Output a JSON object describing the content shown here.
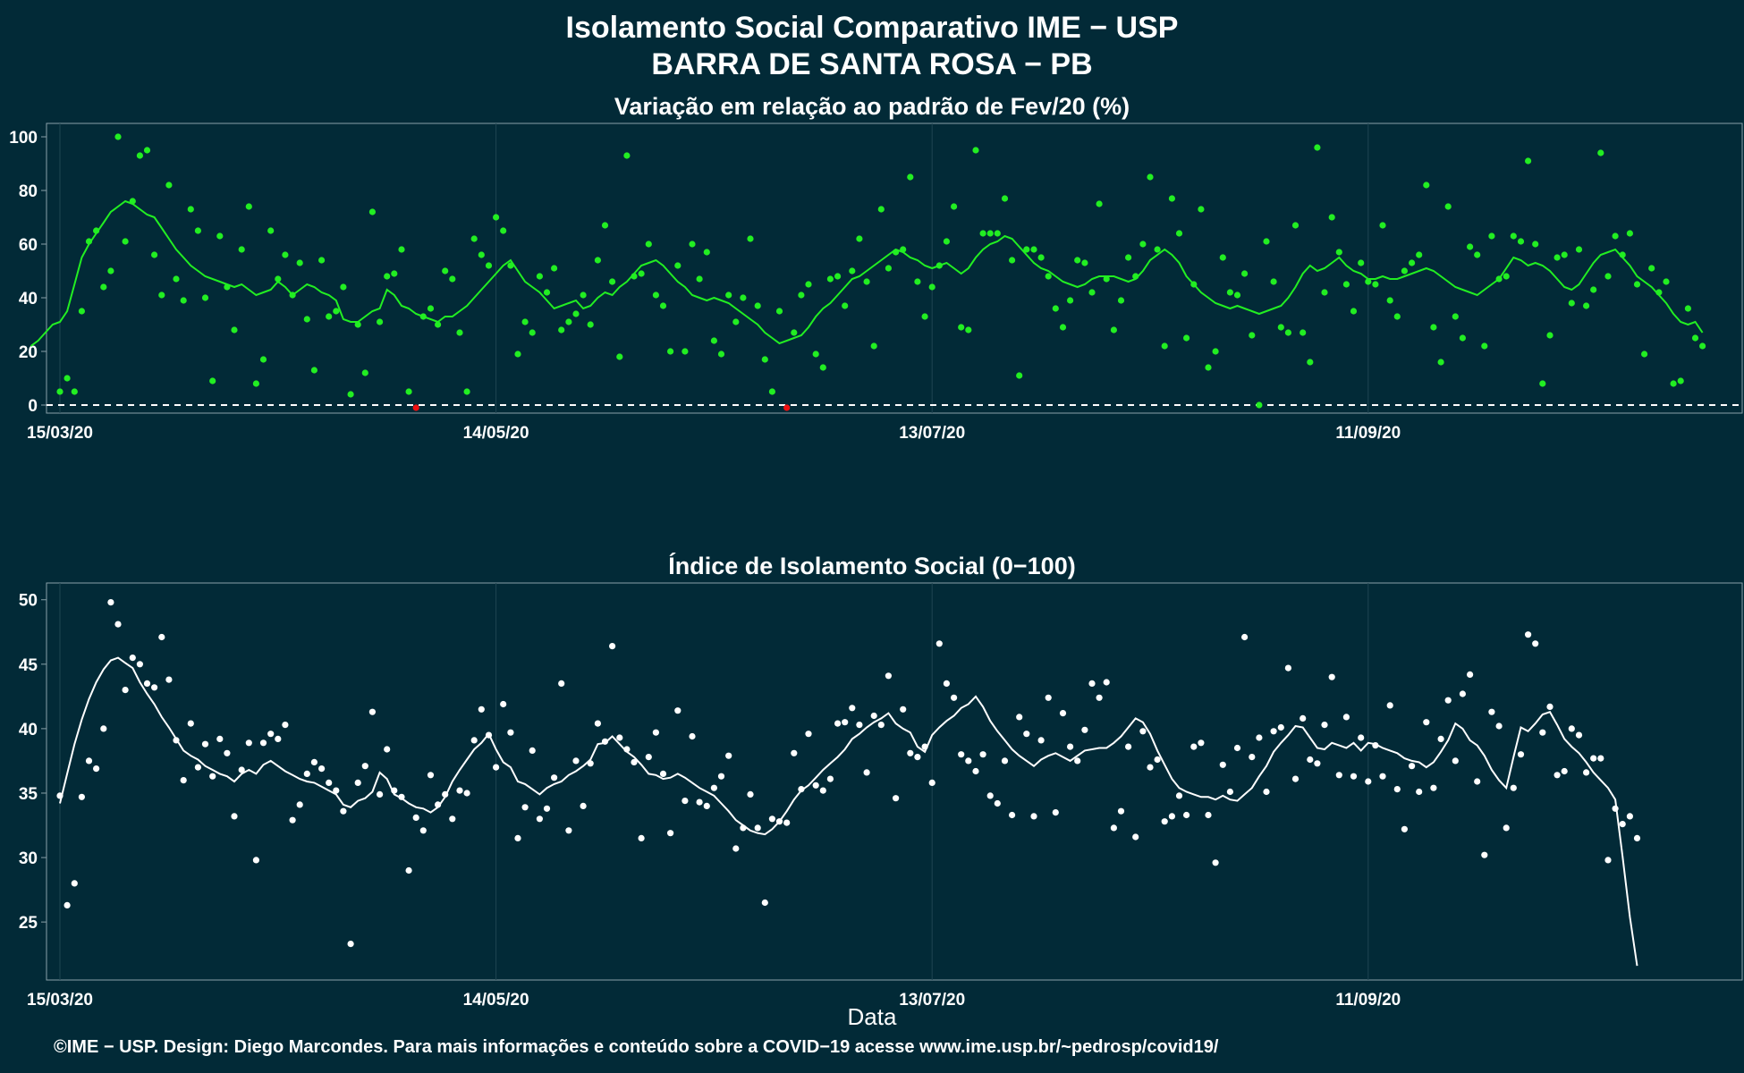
{
  "title": "Isolamento Social Comparativo IME − USP",
  "subtitle": "BARRA DE SANTA ROSA − PB",
  "footer": "©IME − USP. Design: Diego Marcondes. Para mais informações e conteúdo sobre a COVID−19 acesse www.ime.usp.br/~pedrosp/covid19/",
  "colors": {
    "background": "#022a37",
    "panel_border": "#8aa0a8",
    "grid": "#1f4552",
    "variation_points": "#22ee22",
    "variation_line": "#22ee22",
    "negative_points": "#ee1111",
    "index_points": "#ffffff",
    "index_line": "#ffffff",
    "text": "#ffffff"
  },
  "chart_data": [
    {
      "type": "scatter",
      "title": "Variação em relação ao padrão de Fev/20 (%)",
      "xlabel": "",
      "ylabel": "",
      "x_start": "15/03/20",
      "x_end": "30/10/20",
      "x_ticks": [
        "15/03/20",
        "14/05/20",
        "13/07/20",
        "11/09/20"
      ],
      "y_ticks": [
        0,
        20,
        40,
        60,
        80,
        100
      ],
      "ylim": [
        -3,
        105
      ],
      "reference_line": 0,
      "series": [
        {
          "values": [
            5,
            10,
            5,
            35,
            61,
            65,
            44,
            50,
            100,
            61,
            76,
            93,
            95,
            56,
            41,
            82,
            47,
            39,
            73,
            65,
            40,
            9,
            63,
            44,
            28,
            58,
            74,
            8,
            17,
            65,
            47,
            56,
            41,
            53,
            32,
            13,
            54,
            33,
            35,
            44,
            4,
            30,
            12,
            72,
            31,
            48,
            49,
            58,
            5,
            -1,
            33,
            36,
            30,
            50,
            47,
            27,
            5,
            62,
            56,
            52,
            70,
            65,
            52,
            19,
            31,
            27,
            48,
            42,
            51,
            28,
            31,
            34,
            41,
            30,
            54,
            67,
            46,
            18,
            93,
            48,
            49,
            60,
            41,
            37,
            20,
            52,
            20,
            60,
            47,
            57,
            24,
            19,
            41,
            31,
            40,
            62,
            37,
            17,
            5,
            35,
            -1,
            27,
            41,
            45,
            19,
            14,
            47,
            48,
            37,
            50,
            62,
            46,
            22,
            73,
            51,
            57,
            58,
            85,
            46,
            33,
            44,
            52,
            61,
            74,
            29,
            28,
            95,
            64,
            64,
            64,
            77,
            54,
            11,
            58,
            58,
            55,
            48,
            36,
            29,
            39,
            54,
            53,
            42,
            75,
            47,
            28,
            39,
            55,
            48,
            60,
            85,
            58,
            22,
            77,
            64,
            25,
            45,
            73,
            14,
            20,
            55,
            42,
            41,
            49,
            26,
            0,
            61,
            46,
            29,
            27,
            67,
            27,
            16,
            96,
            42,
            70,
            57,
            45,
            35,
            53,
            46,
            45,
            67,
            39,
            33,
            50,
            53,
            56,
            82,
            29,
            16,
            74,
            33,
            25,
            59,
            56,
            22,
            63,
            47,
            48,
            63,
            61,
            91,
            60,
            8,
            26,
            55,
            56,
            38,
            58,
            37,
            43,
            94,
            48,
            63,
            56,
            64,
            45,
            19,
            51,
            42,
            46,
            8,
            9,
            36,
            25,
            22
          ]
        },
        {
          "values": [
            22,
            24,
            27,
            30,
            31,
            35,
            45,
            55,
            60,
            64,
            68,
            72,
            74,
            76,
            75,
            73,
            71,
            70,
            66,
            62,
            58,
            55,
            52,
            50,
            48,
            47,
            46,
            45,
            44,
            45,
            43,
            41,
            42,
            43,
            46,
            44,
            41,
            43,
            45,
            44,
            42,
            41,
            39,
            32,
            31,
            31,
            33,
            35,
            36,
            43,
            41,
            37,
            36,
            34,
            33,
            32,
            31,
            33,
            33,
            35,
            37,
            40,
            43,
            46,
            49,
            52,
            54,
            50,
            46,
            44,
            42,
            39,
            36,
            37,
            38,
            39,
            36,
            37,
            40,
            42,
            41,
            44,
            46,
            49,
            52,
            53,
            54,
            52,
            49,
            46,
            44,
            41,
            40,
            39,
            40,
            39,
            38,
            36,
            34,
            32,
            30,
            27,
            25,
            23,
            24,
            25,
            26,
            29,
            33,
            36,
            38,
            41,
            44,
            47,
            48,
            50,
            52,
            54,
            56,
            58,
            57,
            55,
            54,
            52,
            51,
            52,
            53,
            51,
            49,
            51,
            55,
            58,
            60,
            61,
            63,
            62,
            59,
            56,
            53,
            51,
            50,
            48,
            46,
            45,
            44,
            45,
            47,
            48,
            48,
            48,
            47,
            46,
            47,
            50,
            54,
            56,
            58,
            56,
            53,
            48,
            45,
            42,
            40,
            38,
            37,
            36,
            37,
            36,
            35,
            34,
            35,
            36,
            37,
            40,
            44,
            49,
            52,
            50,
            51,
            53,
            55,
            52,
            50,
            49,
            47,
            47,
            48,
            47,
            47,
            48,
            49,
            50,
            51,
            50,
            48,
            46,
            44,
            43,
            42,
            41,
            43,
            45,
            47,
            51,
            55,
            54,
            52,
            53,
            52,
            50,
            47,
            44,
            43,
            45,
            49,
            53,
            56,
            57,
            58,
            55,
            52,
            48,
            46,
            44,
            41,
            38,
            34,
            31,
            30,
            31,
            27
          ]
        }
      ]
    },
    {
      "type": "scatter",
      "title": "Índice de Isolamento Social (0−100)",
      "xlabel": "Data",
      "ylabel": "",
      "x_start": "15/03/20",
      "x_end": "30/10/20",
      "x_ticks": [
        "15/03/20",
        "14/05/20",
        "13/07/20",
        "11/09/20"
      ],
      "y_ticks": [
        25,
        30,
        35,
        40,
        45,
        50
      ],
      "ylim": [
        20.5,
        51.3
      ],
      "series": [
        {
          "values": [
            34.8,
            26.3,
            28,
            34.7,
            37.5,
            36.9,
            40,
            49.8,
            48.1,
            43,
            45.5,
            45,
            43.5,
            43.2,
            47.1,
            43.8,
            39.1,
            36,
            40.4,
            37,
            38.8,
            36.3,
            39.2,
            38.1,
            33.2,
            36.8,
            38.9,
            29.8,
            38.9,
            39.6,
            39.2,
            40.3,
            32.9,
            34.1,
            36.5,
            37.4,
            36.9,
            35.8,
            35.2,
            33.6,
            23.3,
            35.8,
            37.1,
            41.3,
            34.9,
            38.4,
            35.2,
            34.7,
            29,
            33.1,
            32.1,
            36.4,
            34.1,
            34.9,
            33,
            35.2,
            35,
            39.1,
            41.5,
            39.5,
            37,
            41.9,
            39.7,
            31.5,
            33.9,
            38.3,
            33,
            33.8,
            36.2,
            43.5,
            32.1,
            37.5,
            34,
            37.3,
            40.4,
            39,
            46.4,
            39.3,
            38.4,
            37.4,
            31.5,
            37.8,
            39.7,
            36.5,
            31.9,
            41.4,
            34.4,
            39.4,
            34.3,
            34,
            35.4,
            36.3,
            37.9,
            30.7,
            32.3,
            34.9,
            32.3,
            26.5,
            33,
            32.8,
            32.7,
            38.1,
            35.3,
            39.6,
            35.6,
            35.2,
            36.1,
            40.4,
            40.5,
            41.6,
            40.3,
            36.6,
            41,
            40.3,
            44.1,
            34.6,
            41.5,
            38.1,
            37.8,
            38.6,
            35.8,
            46.6,
            43.5,
            42.4,
            38,
            37.5,
            36.7,
            38,
            34.8,
            34.2,
            37.5,
            33.3,
            40.9,
            39.6,
            33.2,
            39.1,
            42.4,
            33.5,
            41.2,
            38.6,
            37.5,
            39.9,
            43.5,
            42.4,
            43.6,
            32.3,
            33.6,
            38.6,
            31.6,
            39.8,
            37,
            37.6,
            32.8,
            33.2,
            34.8,
            33.3,
            38.6,
            38.9,
            33.3,
            29.6,
            37.2,
            35.1,
            38.5,
            47.1,
            37.8,
            39.3,
            35.1,
            39.8,
            40.1,
            44.7,
            36.1,
            40.8,
            37.6,
            37.3,
            40.3,
            44,
            36.4,
            40.9,
            36.3,
            39.3,
            35.9,
            38.7,
            36.3,
            41.8,
            35.3,
            32.2,
            37.1,
            35.1,
            40.5,
            35.4,
            39.2,
            42.2,
            37.5,
            42.7,
            44.2,
            35.9,
            30.2,
            41.3,
            40.2,
            32.3,
            35.4,
            38,
            47.3,
            46.6,
            39.7,
            41.7,
            36.4,
            36.7,
            40,
            39.5,
            36.6,
            37.7,
            37.7,
            29.8,
            33.8,
            32.6,
            33.2,
            31.5
          ]
        },
        {
          "values": [
            34.2,
            36.5,
            38.8,
            40.7,
            42.3,
            43.6,
            44.6,
            45.3,
            45.5,
            45.1,
            44.7,
            43.6,
            42.7,
            41.9,
            40.9,
            40.1,
            39.2,
            38.3,
            37.9,
            37.6,
            37.1,
            36.8,
            36.5,
            36.3,
            35.9,
            36.5,
            36.8,
            36.5,
            37.2,
            37.5,
            37.1,
            36.7,
            36.4,
            36.1,
            35.9,
            35.8,
            35.5,
            35.2,
            34.9,
            34.1,
            33.9,
            34.4,
            34.6,
            35.1,
            36.6,
            36.1,
            34.9,
            34.6,
            34.2,
            33.9,
            33.8,
            33.5,
            33.9,
            34.7,
            35.9,
            36.8,
            37.6,
            38.4,
            38.9,
            39.6,
            38.4,
            37.4,
            37,
            35.9,
            35.7,
            35.3,
            34.9,
            35.4,
            35.7,
            35.9,
            36.4,
            36.7,
            37.1,
            37.6,
            38.8,
            38.9,
            39.4,
            38.8,
            38.2,
            37.8,
            37.2,
            36.5,
            36.4,
            36.1,
            36.2,
            36.5,
            36.2,
            35.8,
            35.4,
            35.1,
            34.8,
            34.2,
            33.6,
            32.9,
            32.5,
            32.1,
            31.9,
            31.8,
            32.2,
            32.8,
            33.6,
            34.5,
            35.2,
            35.6,
            36.2,
            36.8,
            37.3,
            37.8,
            38.4,
            39.2,
            39.6,
            40.1,
            40.5,
            40.8,
            41.2,
            40.4,
            40,
            39.7,
            38.6,
            38.2,
            39.5,
            40.1,
            40.6,
            41,
            41.6,
            41.9,
            42.5,
            41.7,
            40.6,
            39.8,
            39.1,
            38.4,
            37.9,
            37.5,
            37.1,
            37.6,
            37.9,
            38.1,
            37.8,
            37.5,
            37.9,
            38.3,
            38.4,
            38.5,
            38.5,
            38.9,
            39.4,
            40.1,
            40.8,
            40.5,
            39.6,
            38.3,
            37.2,
            36.1,
            35.4,
            35.1,
            34.9,
            34.7,
            34.7,
            34.5,
            34.8,
            34.5,
            34.4,
            34.9,
            35.4,
            36.3,
            37.1,
            38.2,
            38.9,
            39.5,
            40.2,
            40.1,
            39.3,
            38.5,
            38.4,
            38.9,
            38.7,
            38.5,
            38.9,
            38.3,
            38.9,
            38.8,
            38.5,
            38.3,
            38.1,
            37.7,
            37.5,
            37.4,
            37,
            37.4,
            38.2,
            39.1,
            40.4,
            40,
            39.1,
            38.7,
            37.9,
            36.8,
            36,
            35.4,
            37.8,
            40.1,
            39.8,
            40.4,
            41.1,
            41.3,
            40.3,
            39.2,
            38.6,
            38.1,
            37.4,
            36.6,
            36,
            35.4,
            34.5,
            30.1,
            25.4,
            21.6
          ]
        }
      ]
    }
  ]
}
